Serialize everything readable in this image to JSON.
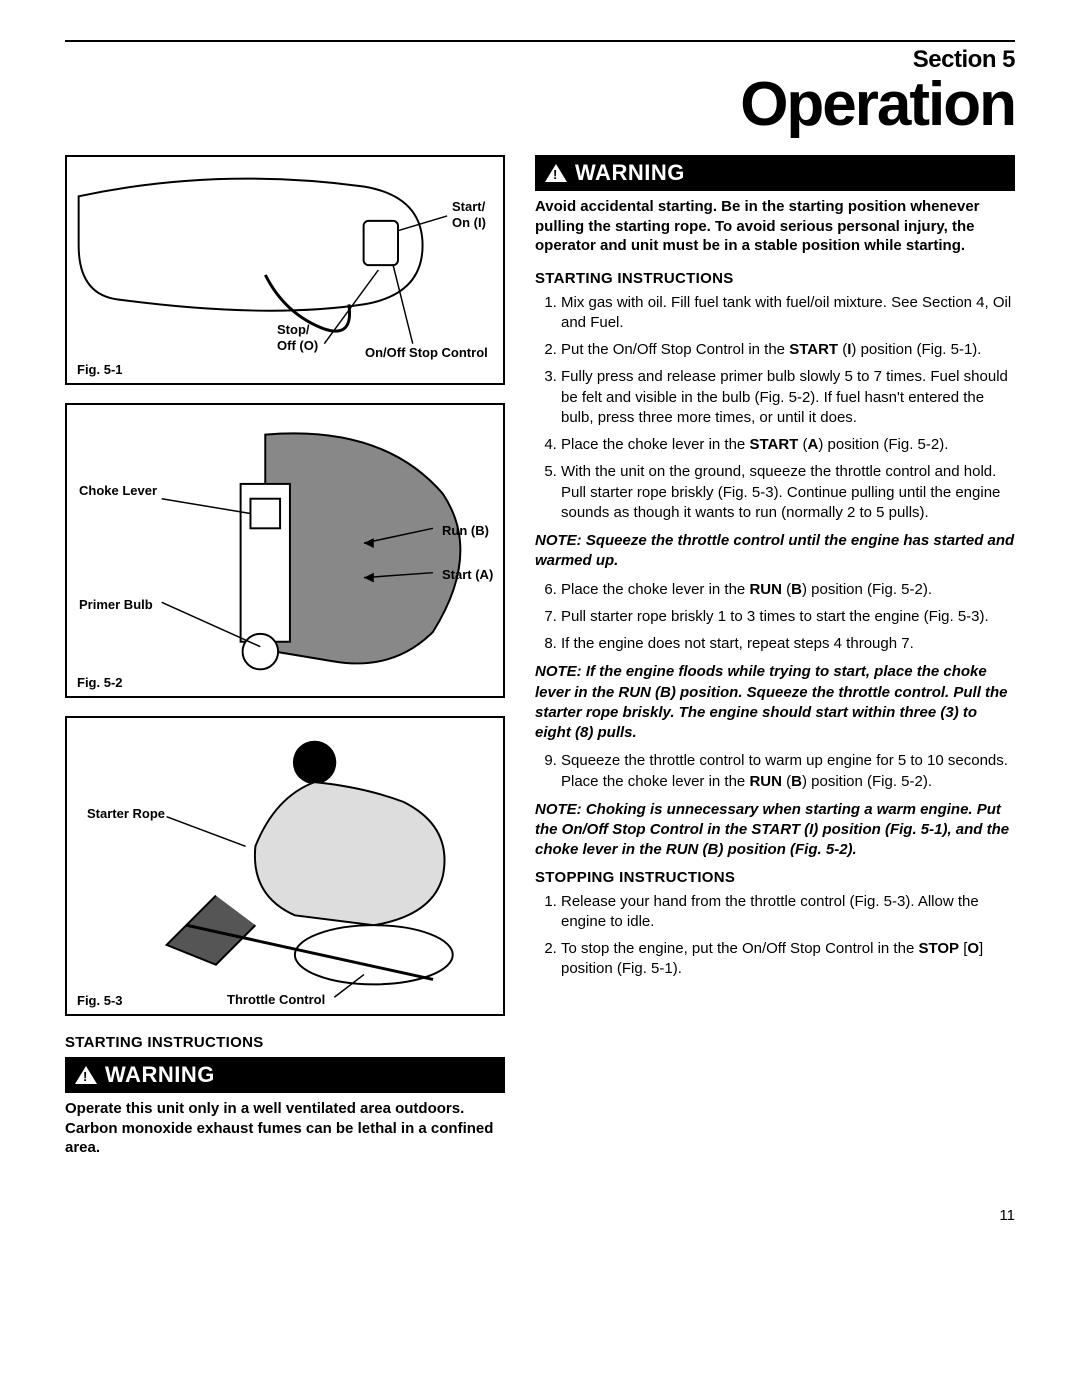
{
  "header": {
    "section_label": "Section 5",
    "title": "Operation"
  },
  "figures": {
    "fig1": {
      "caption": "Fig. 5-1",
      "labels": {
        "start_on": "Start/\nOn (I)",
        "stop_off": "Stop/\nOff (O)",
        "control": "On/Off Stop Control"
      }
    },
    "fig2": {
      "caption": "Fig. 5-2",
      "labels": {
        "choke": "Choke Lever",
        "primer": "Primer Bulb",
        "run_b": "Run (B)",
        "start_a": "Start (A)"
      }
    },
    "fig3": {
      "caption": "Fig. 5-3",
      "labels": {
        "starter": "Starter Rope",
        "throttle": "Throttle Control"
      }
    }
  },
  "left": {
    "subheading": "STARTING INSTRUCTIONS",
    "warning_label": "WARNING",
    "warning_body": "Operate this unit only in a well ventilated area outdoors. Carbon monoxide exhaust fumes can be lethal in a confined area."
  },
  "right": {
    "warning_label": "WARNING",
    "warning_body": "Avoid accidental starting. Be in the starting position whenever pulling the starting rope. To avoid serious personal injury, the operator and unit must be in a stable position while starting.",
    "start_heading": "STARTING INSTRUCTIONS",
    "steps_a": [
      "Mix gas with oil. Fill fuel tank with fuel/oil mixture. See Section 4, Oil and Fuel.",
      "Put the On/Off Stop Control in the <b>START</b> (<b>I</b>) position (Fig. 5-1).",
      "Fully press and release primer bulb slowly 5 to 7 times. Fuel should be felt and visible in the bulb (Fig. 5-2). If fuel hasn't entered the bulb, press three more times, or until it does.",
      "Place the choke lever in the <b>START</b> (<b>A</b>) position (Fig. 5-2).",
      "With the unit on the ground, squeeze the throttle control and hold. Pull starter rope briskly (Fig. 5-3). Continue pulling until the engine sounds as though it wants to run (normally 2 to 5 pulls)."
    ],
    "note1": "NOTE: Squeeze the throttle control until the engine has started and warmed up.",
    "steps_b": [
      "Place the choke lever in the <b>RUN</b> (<b>B</b>) position (Fig. 5-2).",
      "Pull starter rope briskly 1 to 3 times to start the engine (Fig. 5-3).",
      "If the engine does not start, repeat steps 4 through 7."
    ],
    "note2": "NOTE: If the engine floods while trying to start, place the choke lever in the RUN (B) position. Squeeze the throttle control. Pull the starter rope briskly. The engine should start within three (3) to eight (8) pulls.",
    "steps_c": [
      "Squeeze the throttle control to warm up engine for 5 to 10 seconds. Place the choke lever in the <b>RUN</b> (<b>B</b>) position (Fig. 5-2)."
    ],
    "note3": "NOTE: Choking is unnecessary when starting a warm engine. Put the On/Off Stop Control in the START (I) position (Fig. 5-1), and the choke lever in the RUN (B) position (Fig. 5-2).",
    "stop_heading": "STOPPING INSTRUCTIONS",
    "stop_steps": [
      "Release your hand from the throttle control (Fig. 5-3). Allow the engine to idle.",
      "To stop the engine, put the On/Off Stop Control in the <b>STOP</b> [<b>O</b>] position (Fig. 5-1)."
    ]
  },
  "page_number": "11",
  "colors": {
    "text": "#000000",
    "bg": "#ffffff",
    "warning_bg": "#000000",
    "warning_fg": "#ffffff"
  },
  "typography": {
    "title_fontsize": 62,
    "section_fontsize": 24,
    "body_fontsize": 15,
    "caption_fontsize": 13
  }
}
